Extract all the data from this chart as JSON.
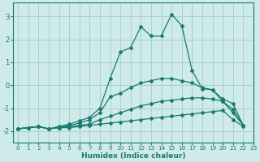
{
  "xlabel": "Humidex (Indice chaleur)",
  "xlim": [
    -0.5,
    23
  ],
  "ylim": [
    -2.5,
    3.6
  ],
  "yticks": [
    -2,
    -1,
    0,
    1,
    2,
    3
  ],
  "xticks": [
    0,
    1,
    2,
    3,
    4,
    5,
    6,
    7,
    8,
    9,
    10,
    11,
    12,
    13,
    14,
    15,
    16,
    17,
    18,
    19,
    20,
    21,
    22,
    23
  ],
  "background_color": "#ceeaea",
  "grid_color": "#aad0d0",
  "line_color": "#1a7a6e",
  "lines": [
    {
      "x": [
        0,
        1,
        2,
        3,
        4,
        5,
        6,
        7,
        8,
        9,
        10,
        11,
        12,
        13,
        14,
        15,
        16,
        17,
        18,
        19,
        20,
        21,
        22
      ],
      "y": [
        -1.9,
        -1.85,
        -1.8,
        -1.9,
        -1.85,
        -1.85,
        -1.8,
        -1.75,
        -1.7,
        -1.65,
        -1.6,
        -1.55,
        -1.5,
        -1.45,
        -1.4,
        -1.35,
        -1.3,
        -1.25,
        -1.2,
        -1.15,
        -1.1,
        -1.5,
        -1.8
      ]
    },
    {
      "x": [
        0,
        1,
        2,
        3,
        4,
        5,
        6,
        7,
        8,
        9,
        10,
        11,
        12,
        13,
        14,
        15,
        16,
        17,
        18,
        19,
        20,
        21,
        22
      ],
      "y": [
        -1.9,
        -1.85,
        -1.8,
        -1.9,
        -1.85,
        -1.8,
        -1.75,
        -1.7,
        -1.5,
        -1.35,
        -1.2,
        -1.05,
        -0.9,
        -0.8,
        -0.7,
        -0.65,
        -0.6,
        -0.55,
        -0.55,
        -0.6,
        -0.7,
        -1.2,
        -1.75
      ]
    },
    {
      "x": [
        0,
        1,
        2,
        3,
        4,
        5,
        6,
        7,
        8,
        9,
        10,
        11,
        12,
        13,
        14,
        15,
        16,
        17,
        18,
        19,
        20,
        21,
        22
      ],
      "y": [
        -1.9,
        -1.85,
        -1.8,
        -1.9,
        -1.85,
        -1.75,
        -1.65,
        -1.5,
        -1.2,
        -0.5,
        -0.35,
        -0.1,
        0.1,
        0.2,
        0.3,
        0.3,
        0.2,
        0.1,
        -0.1,
        -0.2,
        -0.6,
        -0.8,
        -1.75
      ]
    },
    {
      "x": [
        0,
        1,
        2,
        3,
        4,
        5,
        6,
        7,
        8,
        9,
        10,
        11,
        12,
        13,
        14,
        15,
        16,
        17,
        18,
        19,
        20,
        21,
        22
      ],
      "y": [
        -1.9,
        -1.85,
        -1.8,
        -1.9,
        -1.8,
        -1.7,
        -1.55,
        -1.4,
        -1.0,
        0.3,
        1.45,
        1.65,
        2.55,
        2.15,
        2.15,
        3.1,
        2.6,
        0.65,
        -0.15,
        -0.2,
        -0.7,
        -1.05,
        -1.75
      ]
    }
  ]
}
